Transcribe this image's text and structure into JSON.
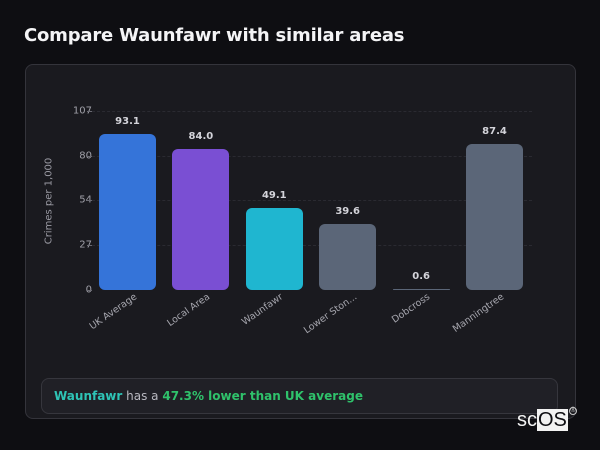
{
  "header": {
    "title": "Compare Waunfawr with similar areas"
  },
  "chart_data": {
    "type": "bar",
    "title": "Compare Waunfawr with similar areas",
    "xlabel": "",
    "ylabel": "Crimes per 1,000",
    "ylim": [
      0,
      107
    ],
    "yticks": [
      0,
      27,
      54,
      80,
      107
    ],
    "grid": true,
    "categories": [
      "UK Average",
      "Local Area",
      "Waunfawr",
      "Lower Ston...",
      "Dobcross",
      "Manningtree"
    ],
    "values": [
      93.1,
      84.0,
      49.1,
      39.6,
      0.6,
      87.4
    ],
    "value_labels": [
      "93.1",
      "84.0",
      "49.1",
      "39.6",
      "0.6",
      "87.4"
    ],
    "colors": [
      "#3574d9",
      "#7a4fd3",
      "#1fb6d0",
      "#5b6678",
      "#5b6678",
      "#5b6678"
    ]
  },
  "summary": {
    "area": "Waunfawr",
    "middle": " has a ",
    "delta": "47.3% lower than UK average"
  },
  "logo": {
    "prefix": "sc",
    "highlight": "OS",
    "mark": "®"
  },
  "colors": {
    "background": "#0e0e12",
    "card": "#1a1a1f",
    "accent_teal": "#2ec4b6",
    "accent_green": "#2fc26b"
  }
}
